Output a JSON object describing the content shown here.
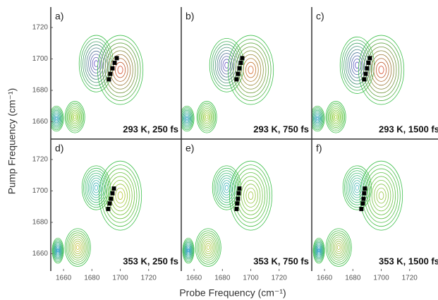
{
  "ylabel": "Pump Frequency (cm⁻¹)",
  "xlabel": "Probe Frequency (cm⁻¹)",
  "chart_data": [
    {
      "type": "contour",
      "label": "a)",
      "annotation": "293 K, 250 fs",
      "xlim": [
        1651,
        1743
      ],
      "ylim": [
        1649,
        1733
      ],
      "yticks": [
        1660,
        1680,
        1700,
        1720
      ],
      "peaks": [
        {
          "x": 1683,
          "y": 1697,
          "rx": 12,
          "ry": 18,
          "color": "#6a3cd8"
        },
        {
          "x": 1700,
          "y": 1693,
          "rx": 16,
          "ry": 22,
          "color": "#e8402a"
        },
        {
          "x": 1668,
          "y": 1663,
          "rx": 7,
          "ry": 10,
          "color": "#a8d020"
        },
        {
          "x": 1655,
          "y": 1662,
          "rx": 5,
          "ry": 8,
          "color": "#2f9cd8"
        }
      ],
      "markers": {
        "x": [
          1692,
          1693,
          1694.5,
          1696,
          1697.5
        ],
        "y": [
          1687,
          1690.5,
          1694,
          1697.5,
          1700.5
        ]
      }
    },
    {
      "type": "contour",
      "label": "b)",
      "annotation": "293 K, 750 fs",
      "xlim": [
        1651,
        1743
      ],
      "ylim": [
        1649,
        1733
      ],
      "peaks": [
        {
          "x": 1683,
          "y": 1696,
          "rx": 12,
          "ry": 17,
          "color": "#6a3cd8"
        },
        {
          "x": 1700,
          "y": 1693,
          "rx": 16,
          "ry": 22,
          "color": "#e8602a"
        },
        {
          "x": 1669,
          "y": 1663,
          "rx": 7,
          "ry": 10,
          "color": "#b8d030"
        },
        {
          "x": 1655,
          "y": 1662,
          "rx": 5,
          "ry": 8,
          "color": "#2f9cd8"
        }
      ],
      "markers": {
        "x": [
          1690,
          1691,
          1692,
          1693,
          1694
        ],
        "y": [
          1687,
          1690.5,
          1694,
          1697.5,
          1700.5
        ]
      }
    },
    {
      "type": "contour",
      "label": "c)",
      "annotation": "293 K, 1500 fs",
      "xlim": [
        1651,
        1743
      ],
      "ylim": [
        1649,
        1733
      ],
      "peaks": [
        {
          "x": 1683,
          "y": 1696,
          "rx": 12,
          "ry": 18,
          "color": "#5a3cd8"
        },
        {
          "x": 1700,
          "y": 1693,
          "rx": 16,
          "ry": 22,
          "color": "#e8402a"
        },
        {
          "x": 1668,
          "y": 1663,
          "rx": 7,
          "ry": 10,
          "color": "#a8d020"
        },
        {
          "x": 1655,
          "y": 1662,
          "rx": 5,
          "ry": 8,
          "color": "#2f9cd8"
        }
      ],
      "markers": {
        "x": [
          1688,
          1689,
          1690,
          1691,
          1692
        ],
        "y": [
          1687,
          1690.5,
          1694,
          1697.5,
          1700.5
        ]
      }
    },
    {
      "type": "contour",
      "label": "d)",
      "annotation": "353 K, 250 fs",
      "xlim": [
        1651,
        1743
      ],
      "ylim": [
        1649,
        1733
      ],
      "xticks": [
        1660,
        1680,
        1700,
        1720
      ],
      "yticks": [
        1660,
        1680,
        1700,
        1720
      ],
      "peaks": [
        {
          "x": 1683,
          "y": 1702,
          "rx": 10,
          "ry": 14,
          "color": "#3bb0d0"
        },
        {
          "x": 1700,
          "y": 1697,
          "rx": 15,
          "ry": 22,
          "color": "#c8c830"
        },
        {
          "x": 1670,
          "y": 1664,
          "rx": 9,
          "ry": 12,
          "color": "#e0c030"
        },
        {
          "x": 1656,
          "y": 1662,
          "rx": 4,
          "ry": 8,
          "color": "#2090e0"
        }
      ],
      "markers": {
        "x": [
          1691.5,
          1692.5,
          1693.5,
          1694.5,
          1695.5
        ],
        "y": [
          1688.5,
          1692,
          1695,
          1698.5,
          1701.5
        ]
      }
    },
    {
      "type": "contour",
      "label": "e)",
      "annotation": "353 K, 750 fs",
      "xlim": [
        1651,
        1743
      ],
      "ylim": [
        1649,
        1733
      ],
      "xticks": [
        1660,
        1680,
        1700,
        1720
      ],
      "peaks": [
        {
          "x": 1683,
          "y": 1702,
          "rx": 10,
          "ry": 14,
          "color": "#3bb0d0"
        },
        {
          "x": 1700,
          "y": 1697,
          "rx": 15,
          "ry": 22,
          "color": "#b0c840"
        },
        {
          "x": 1670,
          "y": 1664,
          "rx": 9,
          "ry": 12,
          "color": "#c8c838"
        },
        {
          "x": 1656,
          "y": 1662,
          "rx": 4,
          "ry": 8,
          "color": "#2090e0"
        }
      ],
      "markers": {
        "x": [
          1690,
          1690.5,
          1691,
          1691.5,
          1692
        ],
        "y": [
          1688.5,
          1692,
          1695,
          1698.5,
          1701.5
        ]
      }
    },
    {
      "type": "contour",
      "label": "f)",
      "annotation": "353 K, 1500 fs",
      "xlim": [
        1651,
        1743
      ],
      "ylim": [
        1649,
        1733
      ],
      "xticks": [
        1660,
        1680,
        1700,
        1720
      ],
      "peaks": [
        {
          "x": 1683,
          "y": 1702,
          "rx": 10,
          "ry": 14,
          "color": "#50b8d0"
        },
        {
          "x": 1700,
          "y": 1697,
          "rx": 15,
          "ry": 22,
          "color": "#a8c848"
        },
        {
          "x": 1670,
          "y": 1664,
          "rx": 9,
          "ry": 12,
          "color": "#c0c040"
        },
        {
          "x": 1656,
          "y": 1662,
          "rx": 4,
          "ry": 8,
          "color": "#2090e0"
        }
      ],
      "markers": {
        "x": [
          1686,
          1687,
          1687.5,
          1688,
          1688.5
        ],
        "y": [
          1688.5,
          1692,
          1695,
          1698.5,
          1701.5
        ]
      }
    }
  ]
}
